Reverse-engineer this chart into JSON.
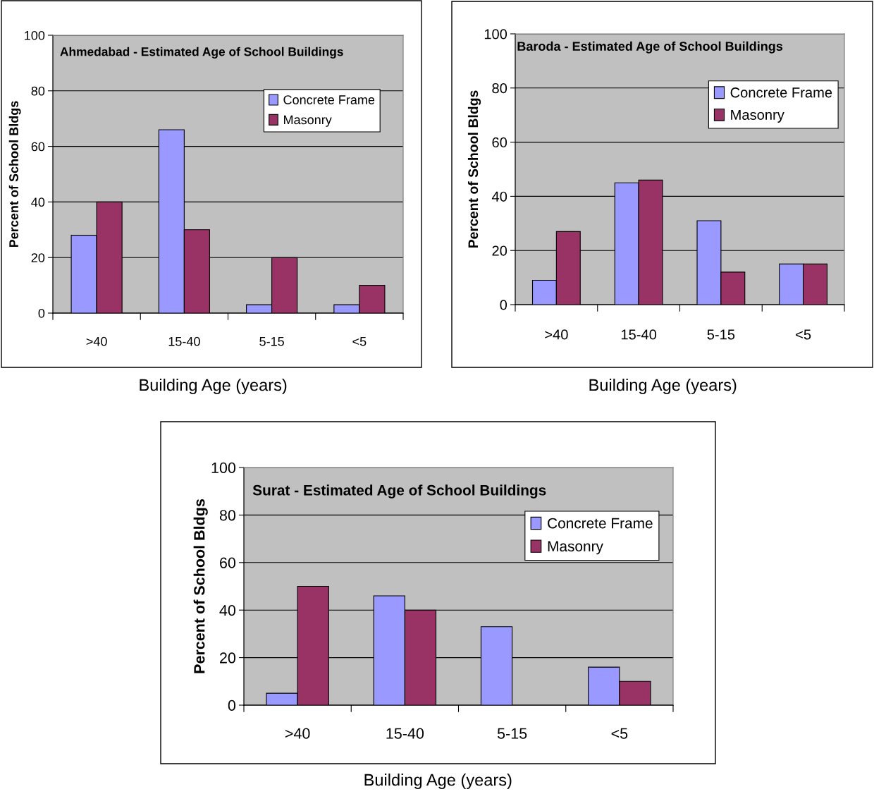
{
  "chart_data": [
    {
      "type": "bar",
      "title": "Ahmedabad - Estimated Age of School Buildings",
      "xlabel": "Building Age (years)",
      "ylabel": "Percent of School Bldgs",
      "categories": [
        ">40",
        "15-40",
        "5-15",
        "<5"
      ],
      "series": [
        {
          "name": "Concrete Frame",
          "color": "#9999ff",
          "values": [
            28,
            66,
            3,
            3
          ]
        },
        {
          "name": "Masonry",
          "color": "#993366",
          "values": [
            40,
            30,
            20,
            10
          ]
        }
      ],
      "ylim": [
        0,
        100
      ],
      "yticks": [
        0,
        20,
        40,
        60,
        80,
        100
      ],
      "grid": "y",
      "legend": "top right"
    },
    {
      "type": "bar",
      "title": "Baroda - Estimated Age of School Buildings",
      "xlabel": "Building Age (years)",
      "ylabel": "Percent of School Bldgs",
      "categories": [
        ">40",
        "15-40",
        "5-15",
        "<5"
      ],
      "series": [
        {
          "name": "Concrete Frame",
          "color": "#9999ff",
          "values": [
            9,
            45,
            31,
            15
          ]
        },
        {
          "name": "Masonry",
          "color": "#993366",
          "values": [
            27,
            46,
            12,
            15
          ]
        }
      ],
      "ylim": [
        0,
        100
      ],
      "yticks": [
        0,
        20,
        40,
        60,
        80,
        100
      ],
      "grid": "y",
      "legend": "top right"
    },
    {
      "type": "bar",
      "title": "Surat - Estimated Age of School Buildings",
      "xlabel": "Building Age (years)",
      "ylabel": "Percent of School Bldgs",
      "categories": [
        ">40",
        "15-40",
        "5-15",
        "<5"
      ],
      "series": [
        {
          "name": "Concrete Frame",
          "color": "#9999ff",
          "values": [
            5,
            46,
            33,
            16
          ]
        },
        {
          "name": "Masonry",
          "color": "#993366",
          "values": [
            50,
            40,
            null,
            10
          ]
        }
      ],
      "ylim": [
        0,
        100
      ],
      "yticks": [
        0,
        20,
        40,
        60,
        80,
        100
      ],
      "grid": "y",
      "legend": "top right"
    }
  ]
}
